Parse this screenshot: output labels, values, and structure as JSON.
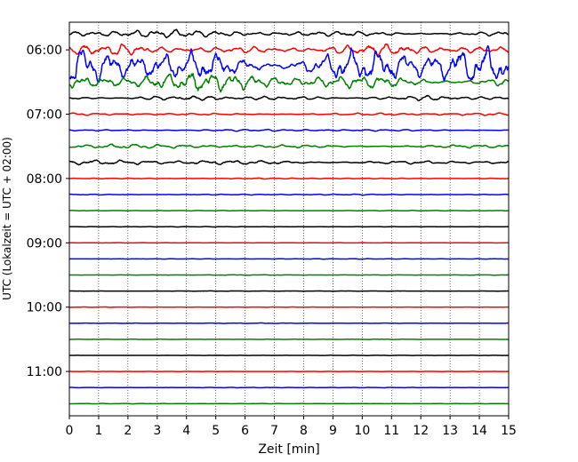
{
  "chart_data": {
    "type": "line",
    "xlabel": "Zeit  [min]",
    "ylabel": "UTC (Lokalzeit = UTC + 02:00)",
    "xlim": [
      0,
      15
    ],
    "x_ticks": [
      0,
      1,
      2,
      3,
      4,
      5,
      6,
      7,
      8,
      9,
      10,
      11,
      12,
      13,
      14,
      15
    ],
    "x_tick_labels": [
      "0",
      "1",
      "2",
      "3",
      "4",
      "5",
      "6",
      "7",
      "8",
      "9",
      "10",
      "11",
      "12",
      "13",
      "14",
      "15"
    ],
    "y_tick_labels": [
      "06:00",
      "07:00",
      "08:00",
      "09:00",
      "10:00",
      "11:00"
    ],
    "y_tick_offsets_min": [
      0,
      60,
      120,
      180,
      240,
      300
    ],
    "trace_interval_min": 15,
    "start_time": "05:45",
    "grid": "vertical-dotted",
    "colors": [
      "#000000",
      "#ff0000",
      "#0000ff",
      "#008000"
    ],
    "traces": [
      {
        "start": "05:45",
        "color": "#000000",
        "amp": 0.55
      },
      {
        "start": "06:00",
        "color": "#ff0000",
        "amp": 0.8
      },
      {
        "start": "06:15",
        "color": "#0000ff",
        "amp": 2.8
      },
      {
        "start": "06:30",
        "color": "#008000",
        "amp": 1.3
      },
      {
        "start": "06:45",
        "color": "#000000",
        "amp": 0.35
      },
      {
        "start": "07:00",
        "color": "#ff0000",
        "amp": 0.2
      },
      {
        "start": "07:15",
        "color": "#0000ff",
        "amp": 0.15
      },
      {
        "start": "07:30",
        "color": "#008000",
        "amp": 0.3
      },
      {
        "start": "07:45",
        "color": "#000000",
        "amp": 0.35
      },
      {
        "start": "08:00",
        "color": "#ff0000",
        "amp": 0.08
      },
      {
        "start": "08:15",
        "color": "#0000ff",
        "amp": 0.08
      },
      {
        "start": "08:30",
        "color": "#008000",
        "amp": 0.06
      },
      {
        "start": "08:45",
        "color": "#000000",
        "amp": 0.04
      },
      {
        "start": "09:00",
        "color": "#ff0000",
        "amp": 0.03
      },
      {
        "start": "09:15",
        "color": "#0000ff",
        "amp": 0.04
      },
      {
        "start": "09:30",
        "color": "#008000",
        "amp": 0.04
      },
      {
        "start": "09:45",
        "color": "#000000",
        "amp": 0.03
      },
      {
        "start": "10:00",
        "color": "#ff0000",
        "amp": 0.03
      },
      {
        "start": "10:15",
        "color": "#0000ff",
        "amp": 0.04
      },
      {
        "start": "10:30",
        "color": "#008000",
        "amp": 0.03
      },
      {
        "start": "10:45",
        "color": "#000000",
        "amp": 0.03
      },
      {
        "start": "11:00",
        "color": "#ff0000",
        "amp": 0.03
      },
      {
        "start": "11:15",
        "color": "#0000ff",
        "amp": 0.04
      },
      {
        "start": "11:30",
        "color": "#008000",
        "amp": 0.04
      }
    ]
  }
}
